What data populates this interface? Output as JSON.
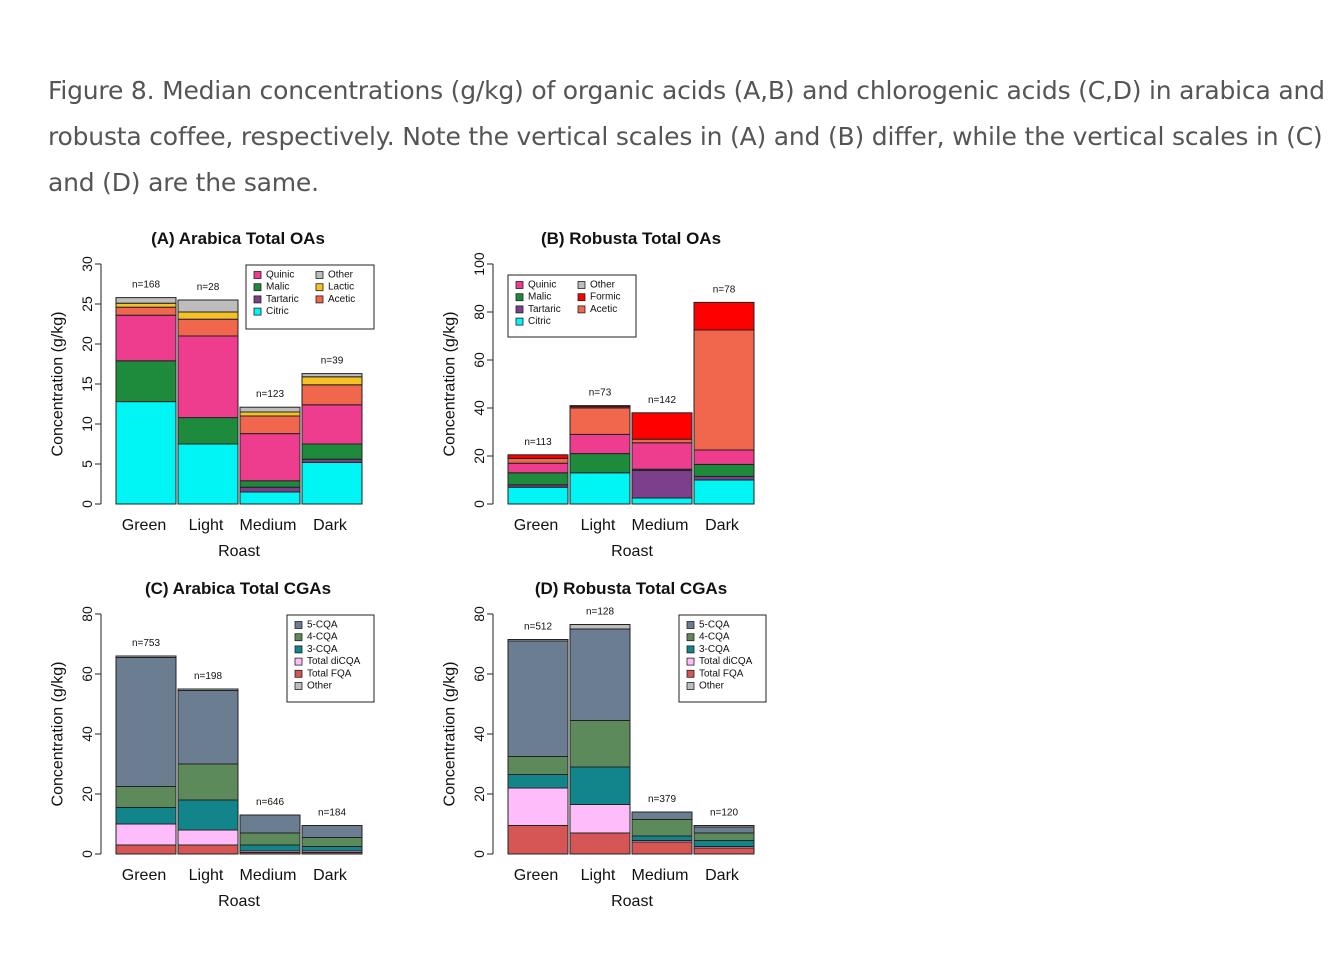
{
  "caption": "Figure 8. Median concentrations (g/kg) of organic acids (A,B) and chlorogenic acids (C,D) in arabica and robusta coffee, respectively. Note the vertical scales in (A) and (B) differ, while the vertical scales in (C) and (D) are the same.",
  "chart_data": [
    {
      "type": "bar",
      "stacked": true,
      "title": "(A) Arabica Total OAs",
      "xlabel": "Roast",
      "ylabel": "Concentration (g/kg)",
      "ylim": [
        0,
        30
      ],
      "yticks": [
        0,
        5,
        10,
        15,
        20,
        25,
        30
      ],
      "categories": [
        "Green",
        "Light",
        "Medium",
        "Dark"
      ],
      "n_labels": [
        "n=168",
        "n=28",
        "n=123",
        "n=39"
      ],
      "legend_position": "top-right",
      "legend_columns": [
        [
          "Quinic",
          "Malic",
          "Tartaric",
          "Citric"
        ],
        [
          "Other",
          "Lactic",
          "Acetic"
        ]
      ],
      "series": [
        {
          "name": "Citric",
          "color": "#00f5f5",
          "values": [
            12.8,
            7.5,
            1.5,
            5.2
          ]
        },
        {
          "name": "Tartaric",
          "color": "#7b3f8c",
          "values": [
            0,
            0,
            0.6,
            0.4
          ]
        },
        {
          "name": "Malic",
          "color": "#1e8a3c",
          "values": [
            5.1,
            3.3,
            0.8,
            1.9
          ]
        },
        {
          "name": "Quinic",
          "color": "#ee3d8f",
          "values": [
            5.7,
            10.2,
            5.9,
            4.9
          ]
        },
        {
          "name": "Acetic",
          "color": "#f0674e",
          "values": [
            1.0,
            2.1,
            2.2,
            2.5
          ]
        },
        {
          "name": "Lactic",
          "color": "#f5c124",
          "values": [
            0.5,
            0.9,
            0.5,
            1.0
          ]
        },
        {
          "name": "Other",
          "color": "#bdbdbd",
          "values": [
            0.7,
            1.5,
            0.6,
            0.4
          ]
        }
      ]
    },
    {
      "type": "bar",
      "stacked": true,
      "title": "(B) Robusta Total OAs",
      "xlabel": "Roast",
      "ylabel": "Concentration (g/kg)",
      "ylim": [
        0,
        100
      ],
      "yticks": [
        0,
        20,
        40,
        60,
        80,
        100
      ],
      "categories": [
        "Green",
        "Light",
        "Medium",
        "Dark"
      ],
      "n_labels": [
        "n=113",
        "n=73",
        "n=142",
        "n=78"
      ],
      "legend_position": "top-left",
      "legend_columns": [
        [
          "Quinic",
          "Malic",
          "Tartaric",
          "Citric"
        ],
        [
          "Other",
          "Formic",
          "Acetic"
        ]
      ],
      "series": [
        {
          "name": "Citric",
          "color": "#00f5f5",
          "values": [
            7,
            13,
            2.5,
            10
          ]
        },
        {
          "name": "Tartaric",
          "color": "#7b3f8c",
          "values": [
            1,
            0,
            11.5,
            1.5
          ]
        },
        {
          "name": "Malic",
          "color": "#1e8a3c",
          "values": [
            5,
            8,
            0.5,
            5
          ]
        },
        {
          "name": "Quinic",
          "color": "#ee3d8f",
          "values": [
            4,
            8,
            11,
            6
          ]
        },
        {
          "name": "Acetic",
          "color": "#f0674e",
          "values": [
            2,
            11,
            1.5,
            50
          ]
        },
        {
          "name": "Formic",
          "color": "#ff0000",
          "values": [
            1.5,
            0.6,
            11,
            11.5
          ]
        },
        {
          "name": "Other",
          "color": "#bdbdbd",
          "values": [
            0,
            0.4,
            0,
            0
          ]
        }
      ]
    },
    {
      "type": "bar",
      "stacked": true,
      "title": "(C) Arabica Total CGAs",
      "xlabel": "Roast",
      "ylabel": "Concentration (g/kg)",
      "ylim": [
        0,
        80
      ],
      "yticks": [
        0,
        20,
        40,
        60,
        80
      ],
      "categories": [
        "Green",
        "Light",
        "Medium",
        "Dark"
      ],
      "n_labels": [
        "n=753",
        "n=198",
        "n=646",
        "n=184"
      ],
      "legend_position": "top-right",
      "legend_columns": [
        [
          "5-CQA",
          "4-CQA",
          "3-CQA",
          "Total diCQA",
          "Total FQA",
          "Other"
        ]
      ],
      "series": [
        {
          "name": "Total FQA",
          "color": "#d65555",
          "values": [
            3,
            3,
            0.5,
            0.5
          ]
        },
        {
          "name": "Total diCQA",
          "color": "#ffbcfa",
          "values": [
            7,
            5,
            0.5,
            0.5
          ]
        },
        {
          "name": "3-CQA",
          "color": "#118589",
          "values": [
            5.5,
            10,
            2,
            1.5
          ]
        },
        {
          "name": "4-CQA",
          "color": "#5d8a5a",
          "values": [
            7,
            12,
            4,
            3
          ]
        },
        {
          "name": "5-CQA",
          "color": "#6b7d91",
          "values": [
            43,
            24.5,
            6,
            4
          ]
        },
        {
          "name": "Other",
          "color": "#bdbdbd",
          "values": [
            0.5,
            0.5,
            0,
            0
          ]
        }
      ]
    },
    {
      "type": "bar",
      "stacked": true,
      "title": "(D) Robusta Total CGAs",
      "xlabel": "Roast",
      "ylabel": "Concentration (g/kg)",
      "ylim": [
        0,
        80
      ],
      "yticks": [
        0,
        20,
        40,
        60,
        80
      ],
      "categories": [
        "Green",
        "Light",
        "Medium",
        "Dark"
      ],
      "n_labels": [
        "n=512",
        "n=128",
        "n=379",
        "n=120"
      ],
      "legend_position": "top-right",
      "legend_columns": [
        [
          "5-CQA",
          "4-CQA",
          "3-CQA",
          "Total diCQA",
          "Total FQA",
          "Other"
        ]
      ],
      "series": [
        {
          "name": "Total FQA",
          "color": "#d65555",
          "values": [
            9.5,
            7,
            4,
            2
          ]
        },
        {
          "name": "Total diCQA",
          "color": "#ffbcfa",
          "values": [
            12.5,
            9.5,
            0.5,
            0.5
          ]
        },
        {
          "name": "3-CQA",
          "color": "#118589",
          "values": [
            4.5,
            12.5,
            1.5,
            2
          ]
        },
        {
          "name": "4-CQA",
          "color": "#5d8a5a",
          "values": [
            6,
            15.5,
            5.5,
            2.5
          ]
        },
        {
          "name": "5-CQA",
          "color": "#6b7d91",
          "values": [
            38.5,
            30.5,
            2.5,
            2
          ]
        },
        {
          "name": "Other",
          "color": "#bdbdbd",
          "values": [
            0.5,
            1.5,
            0,
            0.5
          ]
        }
      ]
    }
  ]
}
